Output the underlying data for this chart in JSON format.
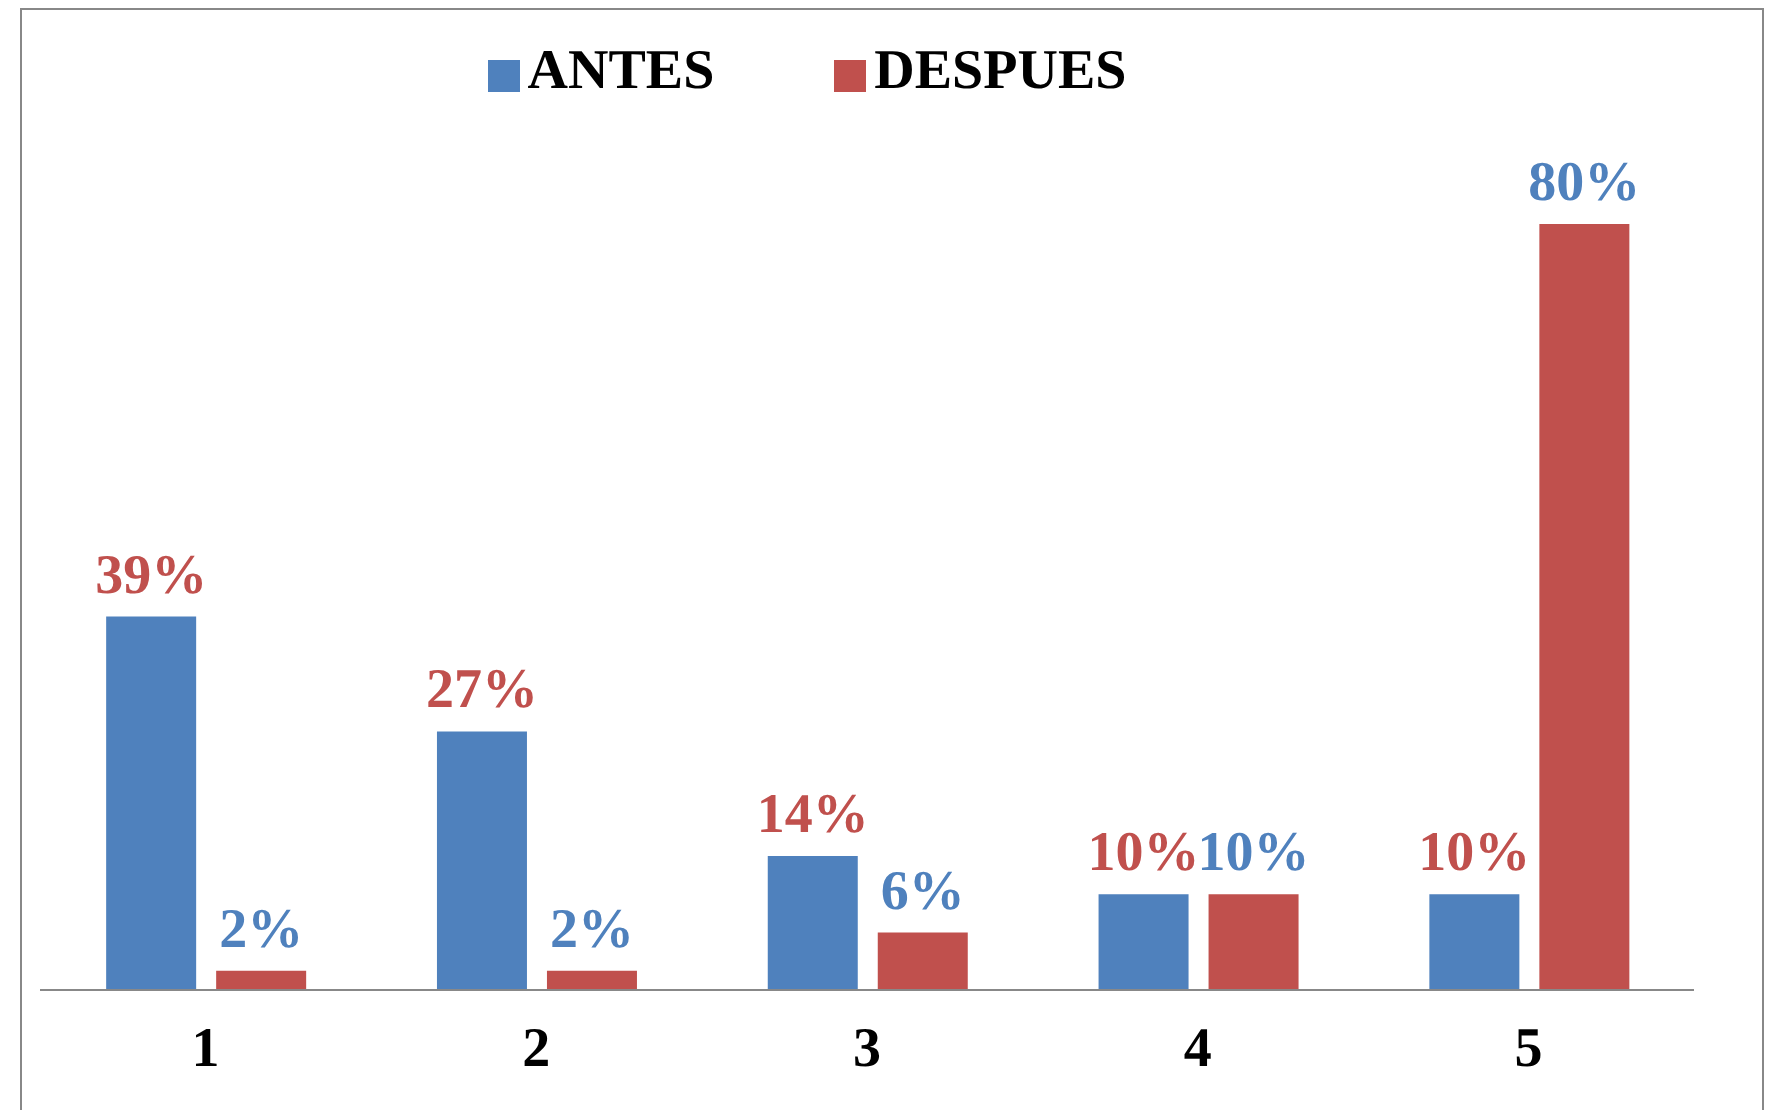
{
  "chart_data": {
    "type": "bar",
    "categories": [
      "1",
      "2",
      "3",
      "4",
      "5"
    ],
    "series": [
      {
        "name": "ANTES",
        "color": "#4f81bd",
        "values": [
          39,
          27,
          14,
          10,
          10
        ],
        "value_labels": [
          "39%",
          "27%",
          "14%",
          "10%",
          "10%"
        ]
      },
      {
        "name": "DESPUES",
        "color": "#c0504d",
        "values": [
          2,
          2,
          6,
          10,
          80
        ],
        "value_labels": [
          "2%",
          "2%",
          "6%",
          "10%",
          "80%"
        ]
      }
    ],
    "legend": "top",
    "grid": false
  }
}
